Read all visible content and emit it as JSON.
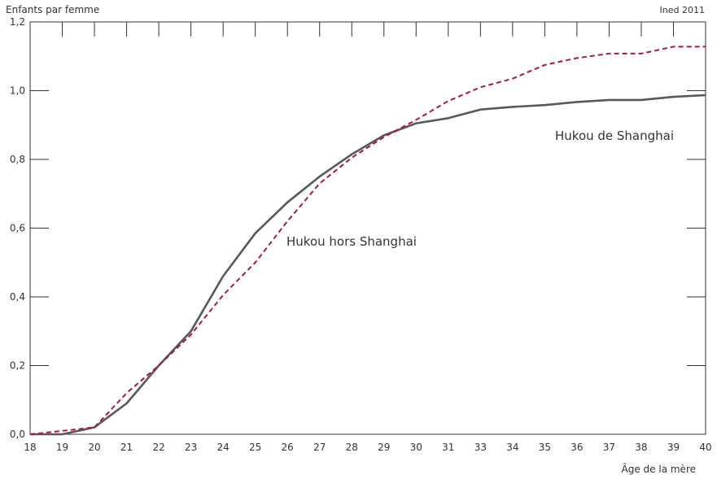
{
  "chart_data": {
    "type": "line",
    "ylabel": "Enfants par femme",
    "xlabel": "Âge de la mère",
    "credit": "Ined 2011",
    "x": [
      18,
      19,
      20,
      21,
      22,
      23,
      24,
      25,
      26,
      27,
      28,
      29,
      30,
      31,
      33,
      34,
      35,
      36,
      37,
      38,
      39,
      40
    ],
    "ylim": [
      0,
      1.2
    ],
    "y_ticks": [
      {
        "value": 0.0,
        "label": "0,0"
      },
      {
        "value": 0.2,
        "label": "0,2"
      },
      {
        "value": 0.4,
        "label": "0,4"
      },
      {
        "value": 0.6,
        "label": "0,6"
      },
      {
        "value": 0.8,
        "label": "0,8"
      },
      {
        "value": 1.0,
        "label": "1,0"
      },
      {
        "value": 1.2,
        "label": "1,2"
      }
    ],
    "series": [
      {
        "name": "Hukou de Shanghai",
        "color": "#58585a",
        "dash": "solid",
        "values": [
          0.0,
          0.0,
          0.02,
          0.09,
          0.2,
          0.3,
          0.46,
          0.585,
          0.675,
          0.75,
          0.815,
          0.87,
          0.905,
          0.92,
          0.945,
          0.953,
          0.958,
          0.967,
          0.973,
          0.973,
          0.982,
          0.987
        ]
      },
      {
        "name": "Hukou hors Shanghai",
        "color": "#b0134a",
        "dash": "dashed",
        "values": [
          0.0,
          0.01,
          0.02,
          0.12,
          0.2,
          0.29,
          0.405,
          0.5,
          0.62,
          0.73,
          0.805,
          0.865,
          0.915,
          0.97,
          1.01,
          1.035,
          1.075,
          1.095,
          1.108,
          1.108,
          1.128,
          1.128
        ]
      }
    ],
    "grid": false
  }
}
